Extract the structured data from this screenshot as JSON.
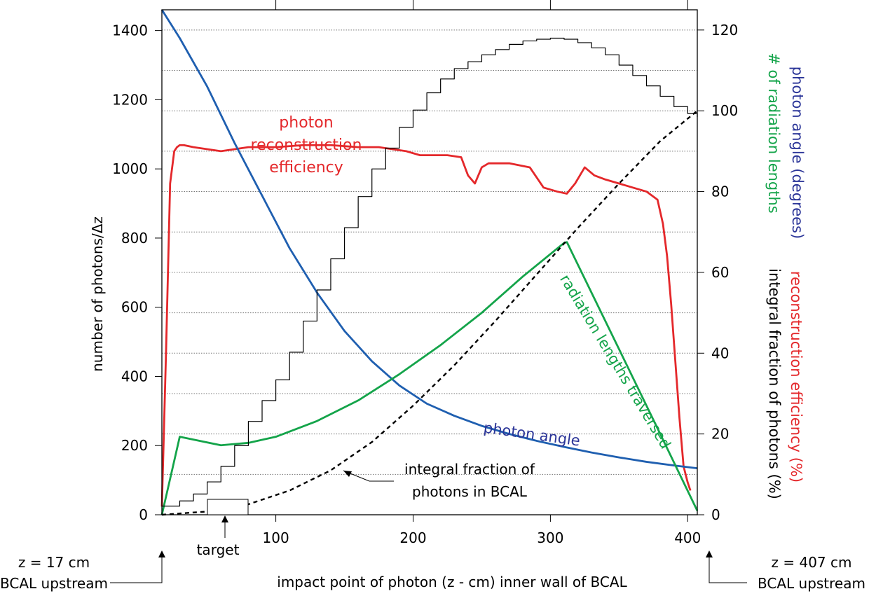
{
  "chart_data": {
    "type": "line",
    "xlabel": "impact point of photon (z - cm) inner wall of BCAL",
    "ylabel_left": "number of photons/Δz",
    "ylabel_right_parts": [
      {
        "text": "photon angle (degrees)",
        "color": "#2b3598"
      },
      {
        "text": "# of radiation lengths",
        "color": "#14a44a"
      },
      {
        "text": "reconstruction efficiency (%)",
        "color": "#e4282b"
      },
      {
        "text": "integral fraction of photons (%)",
        "color": "#000000"
      }
    ],
    "x_range": [
      17,
      407
    ],
    "y_left_range": [
      0,
      1460
    ],
    "y_right_range": [
      0,
      125
    ],
    "x_ticks": [
      100,
      200,
      300,
      400
    ],
    "y_left_ticks": [
      0,
      200,
      400,
      600,
      800,
      1000,
      1200,
      1400
    ],
    "y_right_ticks": [
      0,
      20,
      40,
      60,
      80,
      100,
      120
    ],
    "colors": {
      "histogram": "#000000",
      "angle": "#1f5fb0",
      "efficiency": "#e4282b",
      "radiation": "#14a44a",
      "integral": "#000000",
      "grid": "#777777"
    },
    "series": [
      {
        "name": "photon reconstruction efficiency",
        "axis": "right",
        "x": [
          17,
          20,
          23,
          26,
          28,
          30,
          33,
          40,
          60,
          80,
          100,
          120,
          140,
          160,
          175,
          185,
          195,
          205,
          215,
          225,
          235,
          240,
          245,
          250,
          255,
          262,
          270,
          285,
          295,
          305,
          312,
          318,
          325,
          332,
          340,
          350,
          360,
          370,
          378,
          382,
          385,
          388,
          391,
          394,
          397,
          400,
          402
        ],
        "y": [
          2,
          40,
          82,
          90,
          91,
          91.5,
          91.5,
          91,
          90,
          91,
          91,
          91.5,
          91.5,
          91,
          91,
          90.5,
          90,
          89,
          89,
          89,
          88.5,
          84,
          82,
          86,
          87,
          87,
          87,
          86,
          81,
          80,
          79.5,
          82,
          86,
          84,
          83,
          82,
          81,
          80,
          78,
          72,
          64,
          52,
          38,
          24,
          12,
          8,
          6
        ]
      },
      {
        "name": "photon angle",
        "axis": "right",
        "x": [
          17,
          30,
          50,
          70,
          90,
          110,
          130,
          150,
          170,
          190,
          210,
          230,
          250,
          270,
          290,
          310,
          330,
          350,
          370,
          390,
          407
        ],
        "y": [
          125,
          118,
          106,
          92,
          79,
          66,
          55,
          45.5,
          38,
          32,
          27.5,
          24.5,
          22,
          20,
          18.3,
          16.8,
          15.4,
          14.2,
          13.1,
          12.2,
          11.5
        ]
      },
      {
        "name": "radiation lengths traversed",
        "axis": "right",
        "x": [
          17,
          30,
          60,
          80,
          100,
          130,
          160,
          190,
          220,
          250,
          280,
          310,
          312,
          350,
          380,
          407
        ],
        "y": [
          0,
          19.3,
          17.2,
          17.8,
          19.3,
          23.2,
          28.3,
          34.8,
          42,
          50,
          59,
          67.3,
          67.5,
          41,
          20,
          1
        ]
      },
      {
        "name": "integral fraction of photons in BCAL",
        "axis": "right",
        "x": [
          17,
          50,
          80,
          110,
          140,
          170,
          200,
          230,
          260,
          290,
          320,
          350,
          380,
          407
        ],
        "y": [
          0,
          0.8,
          2.6,
          6,
          11,
          18,
          27,
          37,
          48,
          59.5,
          71,
          82,
          92.5,
          100
        ]
      },
      {
        "name": "number of photons/Δz",
        "axis": "left",
        "x": [
          17,
          30,
          40,
          50,
          60,
          70,
          80,
          90,
          100,
          110,
          120,
          130,
          140,
          150,
          160,
          170,
          180,
          190,
          200,
          210,
          220,
          230,
          240,
          250,
          260,
          270,
          280,
          290,
          300,
          310,
          320,
          330,
          340,
          350,
          360,
          370,
          380,
          390,
          400,
          407
        ],
        "y": [
          25,
          40,
          60,
          95,
          140,
          200,
          270,
          330,
          390,
          470,
          560,
          650,
          740,
          830,
          920,
          1000,
          1060,
          1120,
          1170,
          1220,
          1260,
          1290,
          1310,
          1330,
          1345,
          1360,
          1370,
          1375,
          1378,
          1375,
          1365,
          1350,
          1330,
          1300,
          1270,
          1240,
          1210,
          1180,
          1160,
          1150
        ]
      }
    ],
    "annotations": {
      "efficiency_label": [
        "photon",
        "reconstruction",
        "efficiency"
      ],
      "angle_label": "photon angle",
      "radiation_label": "radiation lengths traversed",
      "integral_label": [
        "integral fraction of",
        "photons in BCAL"
      ],
      "target_label": "target",
      "left_end_label": [
        "z = 17 cm",
        "BCAL upstream"
      ],
      "right_end_label": [
        "z = 407 cm",
        "BCAL upstream"
      ]
    }
  }
}
